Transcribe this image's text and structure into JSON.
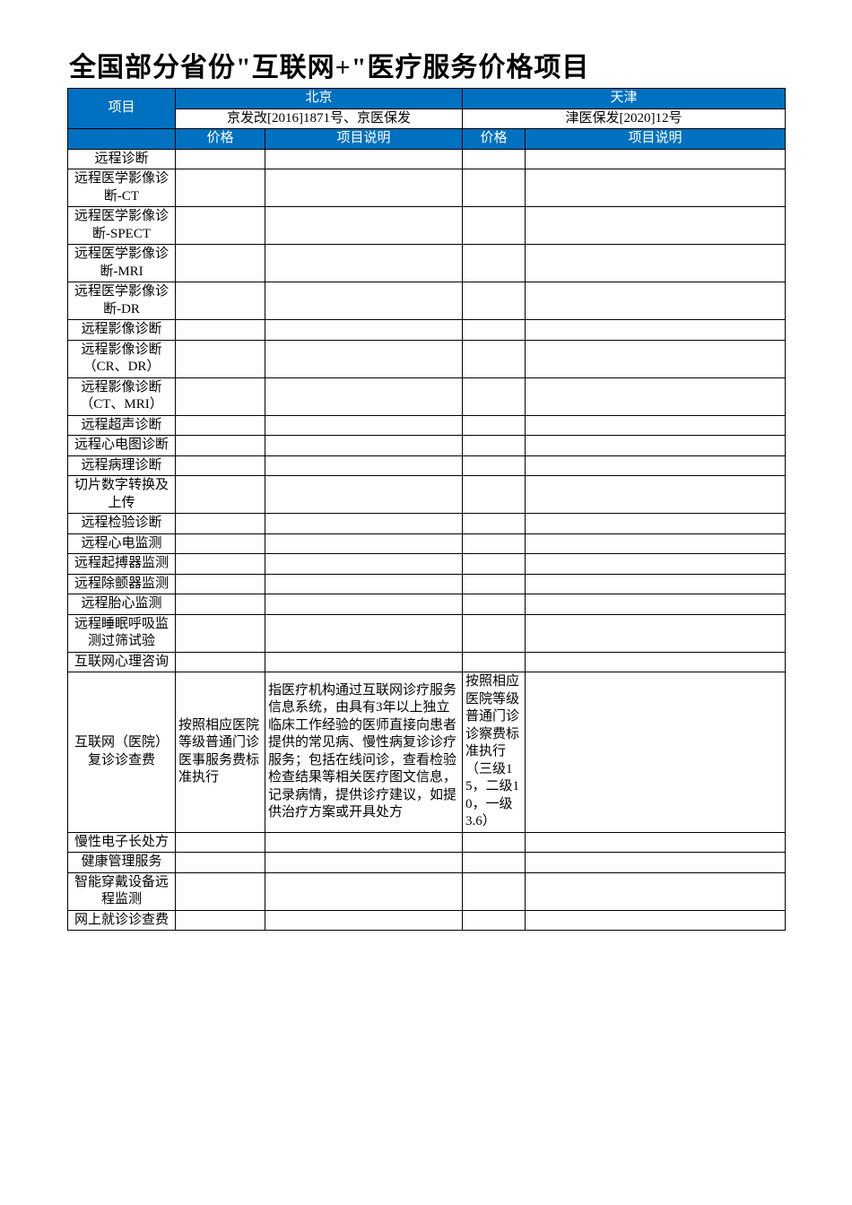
{
  "title": "全国部分省份\"互联网+\"医疗服务价格项目",
  "colors": {
    "header_bg": "#0070c0",
    "header_text": "#ffffff",
    "border": "#000000",
    "page_bg": "#ffffff"
  },
  "columns": {
    "item_label": "项目",
    "regions": [
      {
        "name": "北京",
        "doc_ref": "京发改[2016]1871号、京医保发",
        "price_label": "价格",
        "desc_label": "项目说明"
      },
      {
        "name": "天津",
        "doc_ref": "津医保发[2020]12号",
        "price_label": "价格",
        "desc_label": "项目说明"
      }
    ]
  },
  "rows": [
    {
      "item": "远程诊断",
      "p1": "",
      "d1": "",
      "p2": "",
      "d2": ""
    },
    {
      "item": "远程医学影像诊断-CT",
      "p1": "",
      "d1": "",
      "p2": "",
      "d2": ""
    },
    {
      "item": "远程医学影像诊断-SPECT",
      "p1": "",
      "d1": "",
      "p2": "",
      "d2": ""
    },
    {
      "item": "远程医学影像诊断-MRI",
      "p1": "",
      "d1": "",
      "p2": "",
      "d2": ""
    },
    {
      "item": "远程医学影像诊断-DR",
      "p1": "",
      "d1": "",
      "p2": "",
      "d2": ""
    },
    {
      "item": "远程影像诊断",
      "p1": "",
      "d1": "",
      "p2": "",
      "d2": ""
    },
    {
      "item": "远程影像诊断（CR、DR）",
      "p1": "",
      "d1": "",
      "p2": "",
      "d2": ""
    },
    {
      "item": "远程影像诊断（CT、MRI）",
      "p1": "",
      "d1": "",
      "p2": "",
      "d2": ""
    },
    {
      "item": "远程超声诊断",
      "p1": "",
      "d1": "",
      "p2": "",
      "d2": ""
    },
    {
      "item": "远程心电图诊断",
      "p1": "",
      "d1": "",
      "p2": "",
      "d2": ""
    },
    {
      "item": "远程病理诊断",
      "p1": "",
      "d1": "",
      "p2": "",
      "d2": ""
    },
    {
      "item": "切片数字转换及上传",
      "p1": "",
      "d1": "",
      "p2": "",
      "d2": ""
    },
    {
      "item": "远程检验诊断",
      "p1": "",
      "d1": "",
      "p2": "",
      "d2": ""
    },
    {
      "item": "远程心电监测",
      "p1": "",
      "d1": "",
      "p2": "",
      "d2": ""
    },
    {
      "item": "远程起搏器监测",
      "p1": "",
      "d1": "",
      "p2": "",
      "d2": ""
    },
    {
      "item": "远程除颤器监测",
      "p1": "",
      "d1": "",
      "p2": "",
      "d2": ""
    },
    {
      "item": "远程胎心监测",
      "p1": "",
      "d1": "",
      "p2": "",
      "d2": ""
    },
    {
      "item": "远程睡眠呼吸监测过筛试验",
      "p1": "",
      "d1": "",
      "p2": "",
      "d2": ""
    },
    {
      "item": "互联网心理咨询",
      "p1": "",
      "d1": "",
      "p2": "",
      "d2": ""
    },
    {
      "item": "互联网（医院）复诊诊查费",
      "p1": "按照相应医院等级普通门诊医事服务费标准执行",
      "d1": "指医疗机构通过互联网诊疗服务信息系统，由具有3年以上独立临床工作经验的医师直接向患者提供的常见病、慢性病复诊诊疗服务；包括在线问诊，查看检验检查结果等相关医疗图文信息，记录病情，提供诊疗建议，如提供治疗方案或开具处方",
      "p2": "按照相应医院等级普通门诊诊察费标准执行（三级15，二级10，一级3.6）",
      "d2": ""
    },
    {
      "item": "慢性电子长处方",
      "p1": "",
      "d1": "",
      "p2": "",
      "d2": ""
    },
    {
      "item": "健康管理服务",
      "p1": "",
      "d1": "",
      "p2": "",
      "d2": ""
    },
    {
      "item": "智能穿戴设备远程监测",
      "p1": "",
      "d1": "",
      "p2": "",
      "d2": ""
    },
    {
      "item": "网上就诊诊查费",
      "p1": "",
      "d1": "",
      "p2": "",
      "d2": ""
    }
  ]
}
